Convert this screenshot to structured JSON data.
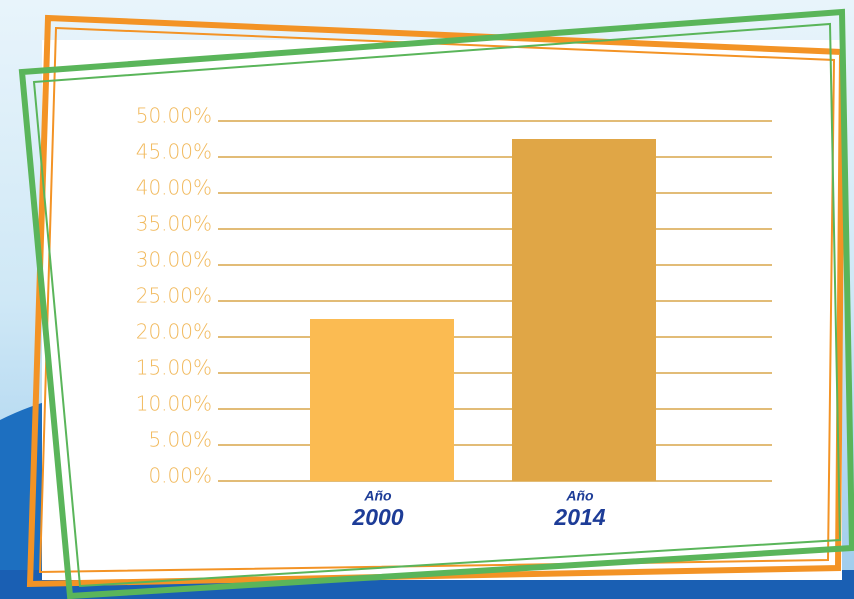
{
  "chart_data": {
    "type": "bar",
    "categories": [
      "2000",
      "2014"
    ],
    "category_prefixes": [
      "Año",
      "Año"
    ],
    "values": [
      22.5,
      47.5
    ],
    "colors": [
      "#fbbb52",
      "#e0a646"
    ],
    "ylim": [
      0,
      50
    ],
    "yticks": [
      {
        "value": 0,
        "label": "0.00%"
      },
      {
        "value": 5,
        "label": "5.00%"
      },
      {
        "value": 10,
        "label": "10.00%"
      },
      {
        "value": 15,
        "label": "15.00%"
      },
      {
        "value": 20,
        "label": "20.00%"
      },
      {
        "value": 25,
        "label": "25.00%"
      },
      {
        "value": 30,
        "label": "30.00%"
      },
      {
        "value": 35,
        "label": "35.00%"
      },
      {
        "value": 40,
        "label": "40.00%"
      },
      {
        "value": 45,
        "label": "45.00%"
      },
      {
        "value": 50,
        "label": "50.00%"
      }
    ],
    "grid": true,
    "grid_color": "#d8a64a"
  }
}
